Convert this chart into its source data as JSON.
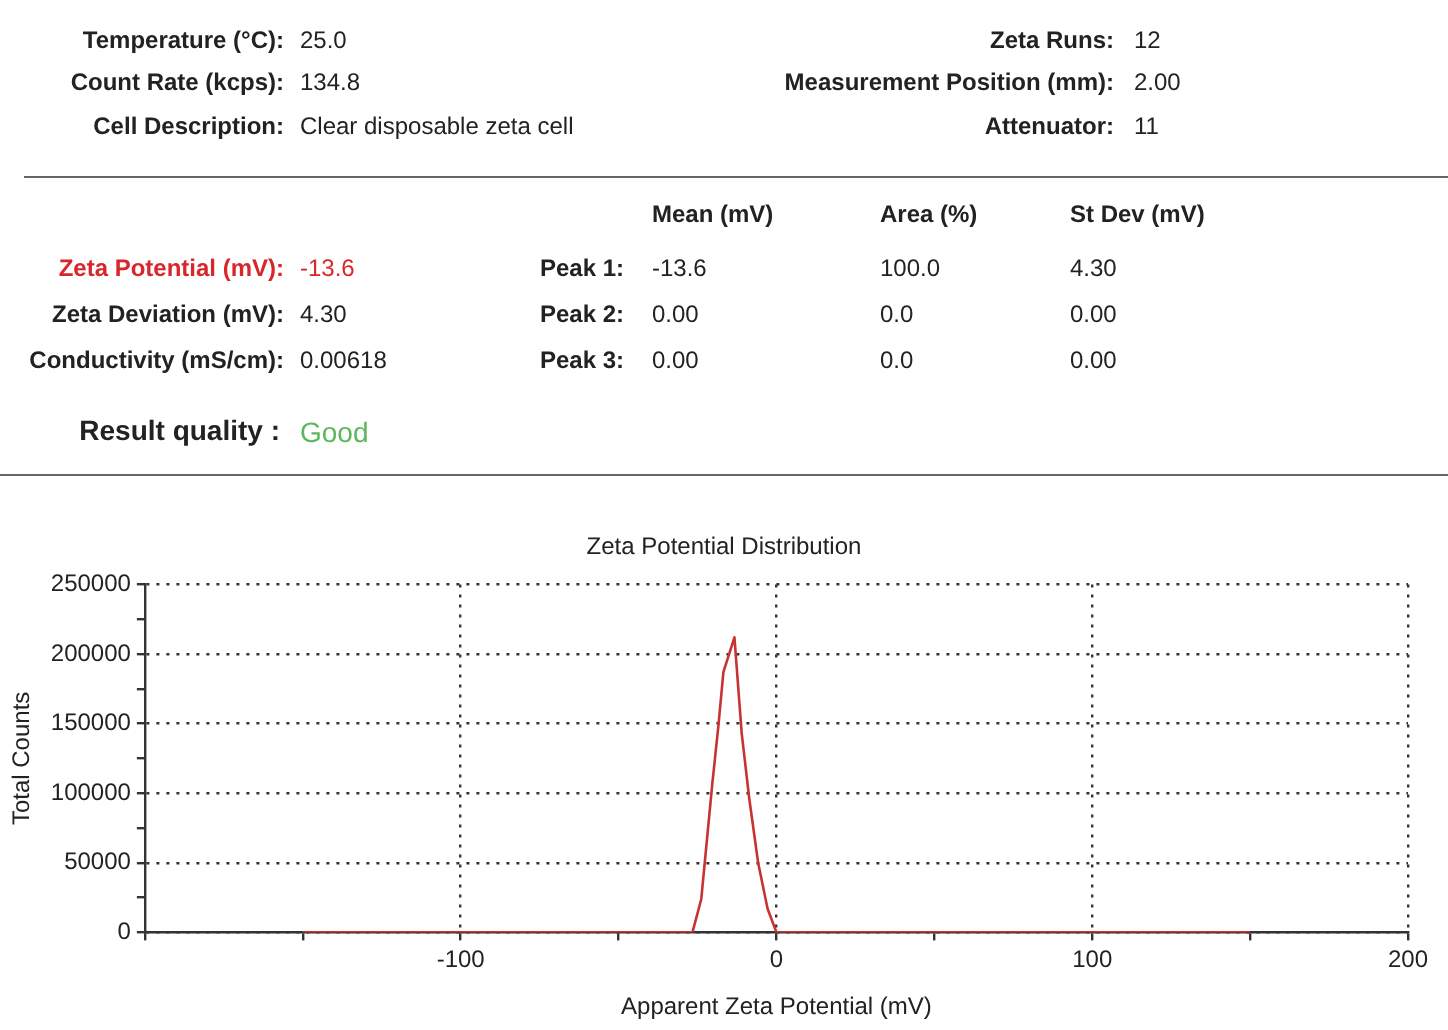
{
  "chart_data": {
    "type": "line",
    "title": "Zeta Potential Distribution",
    "xlabel": "Apparent Zeta Potential (mV)",
    "ylabel": "Total Counts",
    "annotations": [
      "Temperature (°C):",
      "25.0",
      "Count Rate (kcps):",
      "134.8",
      "Cell Description:",
      "Clear disposable zeta cell",
      "Zeta Runs:",
      "12",
      "Measurement Position (mm):",
      "2.00",
      "Attenuator:",
      "11",
      "Mean (mV)",
      "Area (%)",
      "St Dev (mV)",
      "Zeta Potential (mV):",
      "-13.6",
      "Zeta Deviation (mV):",
      "4.30",
      "Conductivity (mS/cm):",
      "0.00618",
      "Peak 1:",
      "-13.6",
      "100.0",
      "4.30",
      "Peak 2:",
      "0.00",
      "0.0",
      "0.00",
      "Peak 3:",
      "0.00",
      "0.0",
      "0.00",
      "Result quality :",
      "Good"
    ],
    "x": [
      -150,
      -26.6,
      -23.8,
      -20.3,
      -18.4,
      -16.8,
      -13.3,
      -11,
      -8.6,
      -5.8,
      -2.8,
      0,
      150
    ],
    "series": [
      {
        "color": "#c83232",
        "values": [
          0,
          0,
          24000,
          107000,
          148000,
          187000,
          212000,
          143000,
          96000,
          50000,
          17000,
          0,
          0
        ]
      }
    ],
    "xlim": [
      -200,
      200
    ],
    "xticks": [
      {
        "value": -200,
        "label": null
      },
      {
        "value": -150,
        "label": null
      },
      -100,
      {
        "value": -50,
        "label": null
      },
      0,
      {
        "value": 50,
        "label": null
      },
      100,
      {
        "value": 150,
        "label": null
      },
      200
    ],
    "ylim": [
      0,
      250000
    ],
    "yticks": [
      0,
      {
        "value": 25000,
        "label": null
      },
      50000,
      {
        "value": 75000,
        "label": null
      },
      100000,
      {
        "value": 125000,
        "label": null
      },
      150000,
      {
        "value": 175000,
        "label": null
      },
      200000,
      {
        "value": 225000,
        "label": null
      },
      250000
    ],
    "grid": true,
    "legend": false,
    "marker": "none",
    "line_style": "solid"
  }
}
